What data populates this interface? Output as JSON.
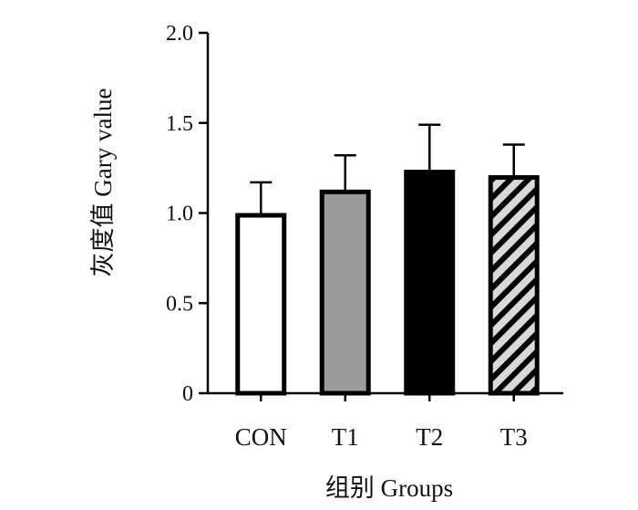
{
  "chart_data": {
    "type": "bar",
    "categories": [
      "CON",
      "T1",
      "T2",
      "T3"
    ],
    "values": [
      1.0,
      1.13,
      1.24,
      1.21
    ],
    "error": [
      0.17,
      0.19,
      0.25,
      0.17
    ],
    "xlabel": "组别 Groups",
    "ylabel": "灰度值 Gary value",
    "ylim": [
      0,
      2.0
    ],
    "yticks": [
      0,
      0.5,
      1.0,
      1.5,
      2.0
    ],
    "ytick_labels": [
      "0",
      "0.5",
      "1.0",
      "1.5",
      "2.0"
    ],
    "grid": false,
    "bar_fills": [
      "white",
      "gray",
      "black",
      "hatched"
    ],
    "colors": {
      "gray": "#9a9a9a",
      "black": "#000000",
      "hatch_bg": "#d9d9d9",
      "outline": "#000000"
    }
  }
}
